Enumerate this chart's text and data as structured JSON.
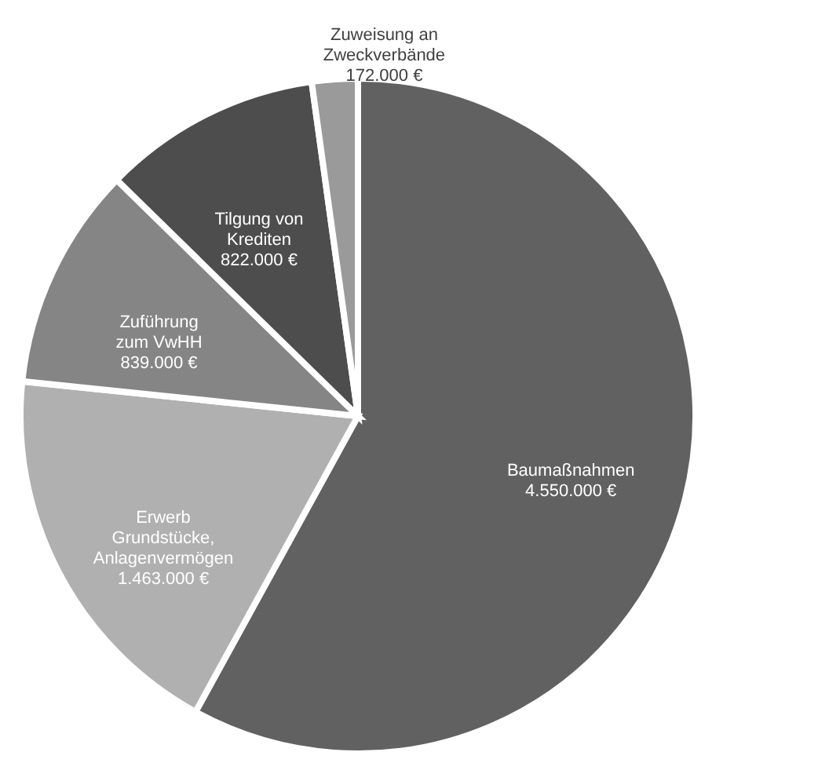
{
  "chart_data": {
    "type": "pie",
    "categories": [
      "Baumaßnahmen",
      "Erwerb Grundstücke, Anlagenvermögen",
      "Zuführung zum VwHH",
      "Tilgung von Krediten",
      "Zuweisung an Zweckverbände"
    ],
    "values": [
      4550000,
      1463000,
      839000,
      822000,
      172000
    ],
    "value_labels": [
      "4.550.000 €",
      "1.463.000 €",
      "839.000 €",
      "822.000 €",
      "172.000 €"
    ],
    "colors": [
      "#616161",
      "#b0b0b0",
      "#858585",
      "#4d4d4d",
      "#9a9a9a"
    ]
  }
}
